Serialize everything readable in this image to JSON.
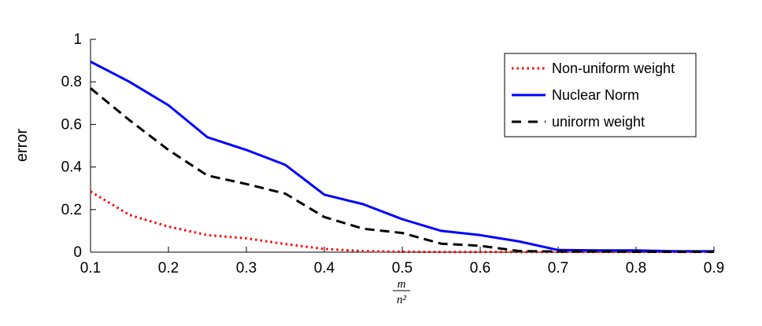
{
  "chart_data": {
    "type": "line",
    "xlabel": {
      "numerator": "m",
      "denominator": "n²"
    },
    "ylabel": "error",
    "xlim": [
      0.1,
      0.9
    ],
    "ylim": [
      0,
      1
    ],
    "x_ticks": [
      "0.1",
      "0.2",
      "0.3",
      "0.4",
      "0.5",
      "0.6",
      "0.7",
      "0.8",
      "0.9"
    ],
    "y_ticks": [
      "0",
      "0.2",
      "0.4",
      "0.6",
      "0.8",
      "1"
    ],
    "grid": false,
    "legend_position": "top-right",
    "x": [
      0.1,
      0.15,
      0.2,
      0.25,
      0.3,
      0.35,
      0.4,
      0.45,
      0.5,
      0.55,
      0.6,
      0.65,
      0.7,
      0.75,
      0.8,
      0.85,
      0.9
    ],
    "series": [
      {
        "name": "Non-uniform weight",
        "color": "#ff0000",
        "style": "dotted",
        "values": [
          0.285,
          0.175,
          0.12,
          0.08,
          0.065,
          0.038,
          0.015,
          0.005,
          0.002,
          0.001,
          0.001,
          0.001,
          0.001,
          0.001,
          0.001,
          0.001,
          0.001
        ]
      },
      {
        "name": "Nuclear Norm",
        "color": "#0000ff",
        "style": "solid",
        "values": [
          0.895,
          0.8,
          0.69,
          0.54,
          0.48,
          0.41,
          0.27,
          0.225,
          0.155,
          0.1,
          0.08,
          0.05,
          0.01,
          0.008,
          0.008,
          0.004,
          0.004
        ]
      },
      {
        "name": "unirorm weight",
        "color": "#000000",
        "style": "dashed",
        "values": [
          0.77,
          0.62,
          0.48,
          0.36,
          0.32,
          0.275,
          0.165,
          0.11,
          0.09,
          0.04,
          0.03,
          0.005,
          0.003,
          0.003,
          0.002,
          0.002,
          0.002
        ]
      }
    ]
  }
}
